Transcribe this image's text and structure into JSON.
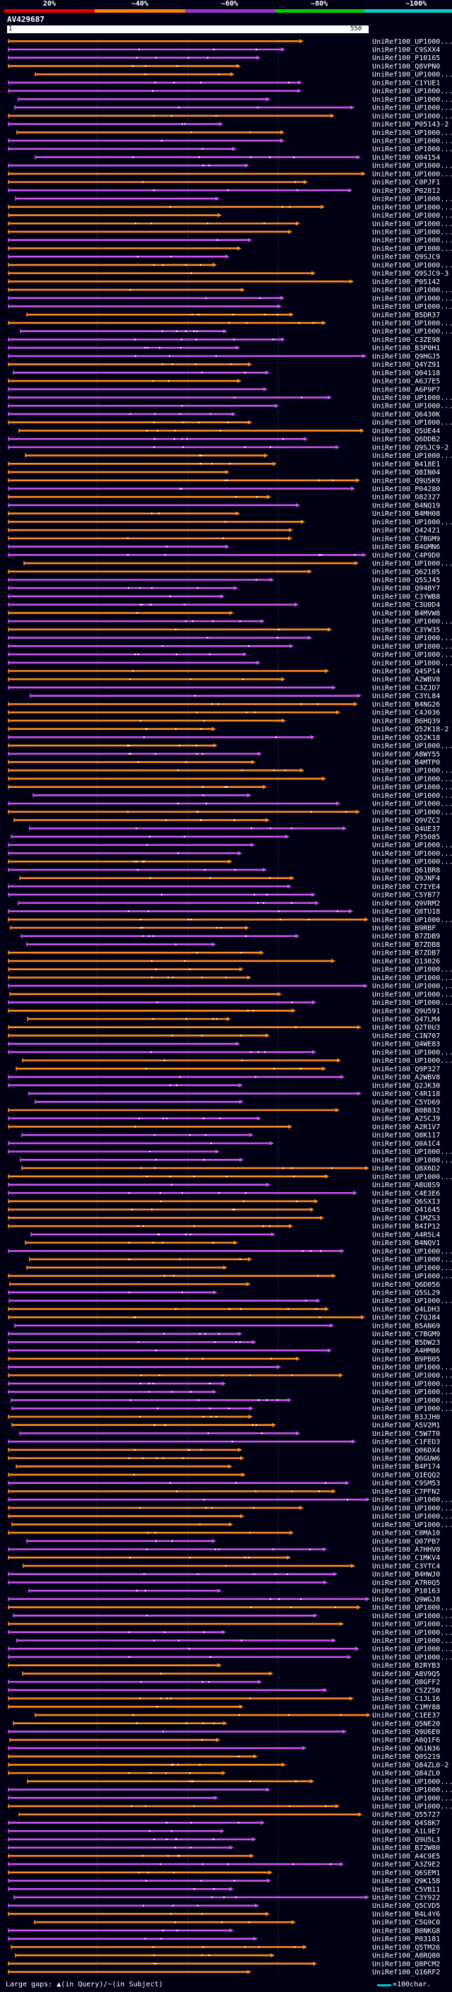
{
  "legend": {
    "labels": [
      "20%",
      "~40%",
      "~60%",
      "~80%",
      "~100%"
    ],
    "colors": [
      "#e60000",
      "#ff8000",
      "#9933cc",
      "#00cc00",
      "#00cccc"
    ]
  },
  "query": {
    "name": "AV429687",
    "scale_start": "1",
    "scale_end": "550"
  },
  "colors": {
    "orange": "#ff8c1a",
    "purple": "#cc55ee",
    "background": "#000014"
  },
  "hits": [
    "UniRef100_UP1000...",
    "UniRef100_C9SXX4",
    "UniRef100_P10165",
    "UniRef100_Q8VPN0",
    "UniRef100_UP1000...",
    "UniRef100_C1YUE1",
    "UniRef100_UP1000...",
    "UniRef100_UP1000...",
    "UniRef100_UP1000...",
    "UniRef100_UP1000...",
    "UniRef100_P05143-2",
    "UniRef100_UP1000...",
    "UniRef100_UP1000...",
    "UniRef100_UP1000...",
    "UniRef100_O04154",
    "UniRef100_UP1000...",
    "UniRef100_UP1000...",
    "UniRef100_C0PJF1",
    "UniRef100_P02812",
    "UniRef100_UP1000...",
    "UniRef100_UP1000...",
    "UniRef100_UP1000...",
    "UniRef100_UP1000...",
    "UniRef100_UP1000...",
    "UniRef100_UP1000...",
    "UniRef100_UP1000...",
    "UniRef100_Q9SJC9",
    "UniRef100_UP1000...",
    "UniRef100_Q9SJC9-3",
    "UniRef100_P05142",
    "UniRef100_UP1000...",
    "UniRef100_UP1000...",
    "UniRef100_UP1000...",
    "UniRef100_B5DR37",
    "UniRef100_UP1000...",
    "UniRef100_UP1000...",
    "UniRef100_C3ZE98",
    "UniRef100_B3P0H1",
    "UniRef100_Q9HGJ5",
    "UniRef100_Q4YZ91",
    "UniRef100_Q04118",
    "UniRef100_A6J7E5",
    "UniRef100_A6P9P7",
    "UniRef100_UP1000...",
    "UniRef100_UP1000...",
    "UniRef100_Q6430K",
    "UniRef100_UP1000...",
    "UniRef100_Q5UE44",
    "UniRef100_Q6DDB2",
    "UniRef100_Q9SJC9-2",
    "UniRef100_UP1000...",
    "UniRef100_B418E1",
    "UniRef100_Q8IN04",
    "UniRef100_Q9U5K9",
    "UniRef100_P04280",
    "UniRef100_O82327",
    "UniRef100_B4NQ19",
    "UniRef100_B4MH08",
    "UniRef100_UP1000...",
    "UniRef100_Q42421",
    "UniRef100_C7BGM9",
    "UniRef100_B4GMN6",
    "UniRef100_C4P9D0",
    "UniRef100_UP1000...",
    "UniRef100_Q62105",
    "UniRef100_Q5SJ45",
    "UniRef100_Q94BY7",
    "UniRef100_C3YWB8",
    "UniRef100_C3U0D4",
    "UniRef100_B4MVW8",
    "UniRef100_UP1000...",
    "UniRef100_C3YW35",
    "UniRef100_UP1000...",
    "UniRef100_UP1000...",
    "UniRef100_UP1000...",
    "UniRef100_UP1000...",
    "UniRef100_Q4SP14",
    "UniRef100_A2WBV8",
    "UniRef100_C3ZJD7",
    "UniRef100_C3YL84",
    "UniRef100_B4NG26",
    "UniRef100_C4J036",
    "UniRef100_B6HQ39",
    "UniRef100_Q52K18-2",
    "UniRef100_Q52K18",
    "UniRef100_UP1000...",
    "UniRef100_A8WY55",
    "UniRef100_B4MTP0",
    "UniRef100_UP1000...",
    "UniRef100_UP1000...",
    "UniRef100_UP1000...",
    "UniRef100_UP1000...",
    "UniRef100_UP1000...",
    "UniRef100_UP1000...",
    "UniRef100_Q9VZC2",
    "UniRef100_Q4UE37",
    "UniRef100_P35085",
    "UniRef100_UP1000...",
    "UniRef100_UP1000...",
    "UniRef100_UP1000...",
    "UniRef100_Q61BR8",
    "UniRef100_Q9JNF4",
    "UniRef100_C7IYE4",
    "UniRef100_C5YB77",
    "UniRef100_Q9VRM2",
    "UniRef100_Q8TU18",
    "UniRef100_UP1000...",
    "UniRef100_B9RBF",
    "UniRef100_B7ZDB9",
    "UniRef100_B7ZDB8",
    "UniRef100_B7ZDB7",
    "UniRef100_Q13026",
    "UniRef100_UP1000...",
    "UniRef100_UP1000...",
    "UniRef100_UP1000...",
    "UniRef100_UP1000...",
    "UniRef100_UP1000...",
    "UniRef100_Q9U591",
    "UniRef100_Q47LM4",
    "UniRef100_Q2T0U3",
    "UniRef100_C1N707",
    "UniRef100_Q4WE83",
    "UniRef100_UP1000...",
    "UniRef100_UP1000...",
    "UniRef100_Q9P327",
    "UniRef100_A2WBV8",
    "UniRef100_Q2JK30",
    "UniRef100_C4R118",
    "UniRef100_C5YD69",
    "UniRef100_B0B832",
    "UniRef100_A2SCJ9",
    "UniRef100_A2R1V7",
    "UniRef100_Q8K117",
    "UniRef100_Q0A1C4",
    "UniRef100_UP1000...",
    "UniRef100_UP1000...",
    "UniRef100_Q8X6D2",
    "UniRef100_UP1000...",
    "UniRef100_A8U8S9",
    "UniRef100_C4E3E6",
    "UniRef100_Q6SXI3",
    "UniRef100_Q41645",
    "UniRef100_C1MZS3",
    "UniRef100_B4IP12",
    "UniRef100_A4R5L4",
    "UniRef100_B4NQV1",
    "UniRef100_UP1000...",
    "UniRef100_UP1000...",
    "UniRef100_UP1000...",
    "UniRef100_UP1000...",
    "UniRef100_Q6D056",
    "UniRef100_Q5SL29",
    "UniRef100_UP1000...",
    "UniRef100_Q4LDH3",
    "UniRef100_C7QJ84",
    "UniRef100_B5AN69",
    "UniRef100_C7BGM9",
    "UniRef100_B5DW23",
    "UniRef100_A4HM86",
    "UniRef100_B9PB05",
    "UniRef100_UP1000...",
    "UniRef100_UP1000...",
    "UniRef100_UP1000...",
    "UniRef100_UP1000...",
    "UniRef100_UP1000...",
    "UniRef100_UP1000...",
    "UniRef100_B3JJH0",
    "UniRef100_A5V2M1",
    "UniRef100_C5W7T0",
    "UniRef100_C1FED3",
    "UniRef100_Q06DX4",
    "UniRef100_Q6GUW6",
    "UniRef100_B4P174",
    "UniRef100_Q1EQQ2",
    "UniRef100_C9SM53",
    "UniRef100_C7PFN2",
    "UniRef100_UP1000...",
    "UniRef100_UP1000...",
    "UniRef100_UP1000...",
    "UniRef100_UP1000...",
    "UniRef100_C0MA10",
    "UniRef100_Q07PB7",
    "UniRef100_A7HHV0",
    "UniRef100_C1MKV4",
    "UniRef100_C3YTC4",
    "UniRef100_B4HWJ0",
    "UniRef100_A7R0Q5",
    "UniRef100_P10163",
    "UniRef100_Q9WGJ8",
    "UniRef100_UP1000...",
    "UniRef100_UP1000...",
    "UniRef100_UP1000...",
    "UniRef100_UP1000...",
    "UniRef100_UP1000...",
    "UniRef100_UP1000...",
    "UniRef100_UP1000...",
    "UniRef100_B2RYB3",
    "UniRef100_A8V9Q5",
    "UniRef100_Q8GFF2",
    "UniRef100_C5ZZ50",
    "UniRef100_C1JL16",
    "UniRef100_C1MY88",
    "UniRef100_C1EE37",
    "UniRef100_Q5NE20",
    "UniRef100_Q9U6E0",
    "UniRef100_A8Q1F6",
    "UniRef100_Q61N36",
    "UniRef100_Q0S219",
    "UniRef100_Q84ZL0-2",
    "UniRef100_Q84ZL0",
    "UniRef100_UP1000...",
    "UniRef100_UP1000...",
    "UniRef100_UP1000...",
    "UniRef100_UP1000...",
    "UniRef100_Q55727",
    "UniRef100_Q4S8K7",
    "UniRef100_A1L9E7",
    "UniRef100_Q9U5L3",
    "UniRef100_B72W80",
    "UniRef100_A4C9E5",
    "UniRef100_A3Z9E2",
    "UniRef100_Q6SEM1",
    "UniRef100_Q9K158",
    "UniRef100_C5VB11",
    "UniRef100_C3Y922",
    "UniRef100_Q5CVD5",
    "UniRef100_B4L4Y6",
    "UniRef100_C5G9C0",
    "UniRef100_B0NKG8",
    "UniRef100_P03181",
    "UniRef100_Q5TM26",
    "UniRef100_A8RQ80",
    "UniRef100_Q8PCM2",
    "UniRef100_Q16RF2"
  ],
  "footer": {
    "gaps_text": "Large gaps: ▲(in Query)/~(in Subject)",
    "scale_text": "=100char."
  }
}
